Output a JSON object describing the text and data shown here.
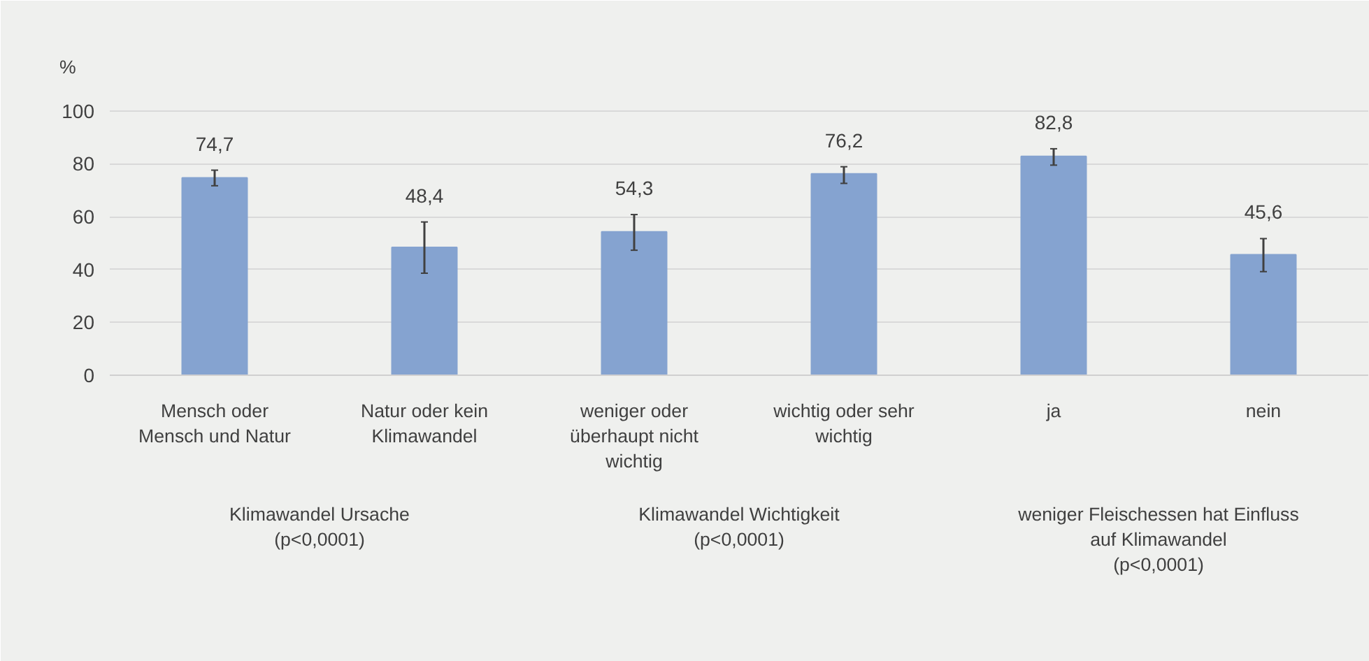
{
  "chart_data": {
    "type": "bar",
    "ylabel": "%",
    "categories": [
      "Mensch oder\nMensch und Natur",
      "Natur oder kein\nKlimawandel",
      "weniger oder\nüberhaupt nicht\nwichtig",
      "wichtig oder sehr\nwichtig",
      "ja",
      "nein"
    ],
    "values": [
      74.7,
      48.4,
      54.3,
      76.2,
      82.8,
      45.6
    ],
    "errors": [
      [
        71.7,
        77.6
      ],
      [
        38.6,
        58.0
      ],
      [
        47.3,
        60.8
      ],
      [
        72.6,
        78.9
      ],
      [
        79.5,
        85.7
      ],
      [
        39.2,
        51.7
      ]
    ],
    "value_labels": [
      "74,7",
      "48,4",
      "54,3",
      "76,2",
      "82,8",
      "45,6"
    ],
    "color": "#85a3d0",
    "ylim": [
      0,
      110
    ],
    "yticks": [
      0,
      20,
      40,
      60,
      80,
      100
    ],
    "grid": "y",
    "annotations": [
      "Klimawandel Ursache\n(p<0,0001)",
      "Klimawandel Wichtigkeit\n(p<0,0001)",
      "weniger Fleischessen hat Einfluss\nauf Klimawandel\n(p<0,0001)"
    ]
  }
}
